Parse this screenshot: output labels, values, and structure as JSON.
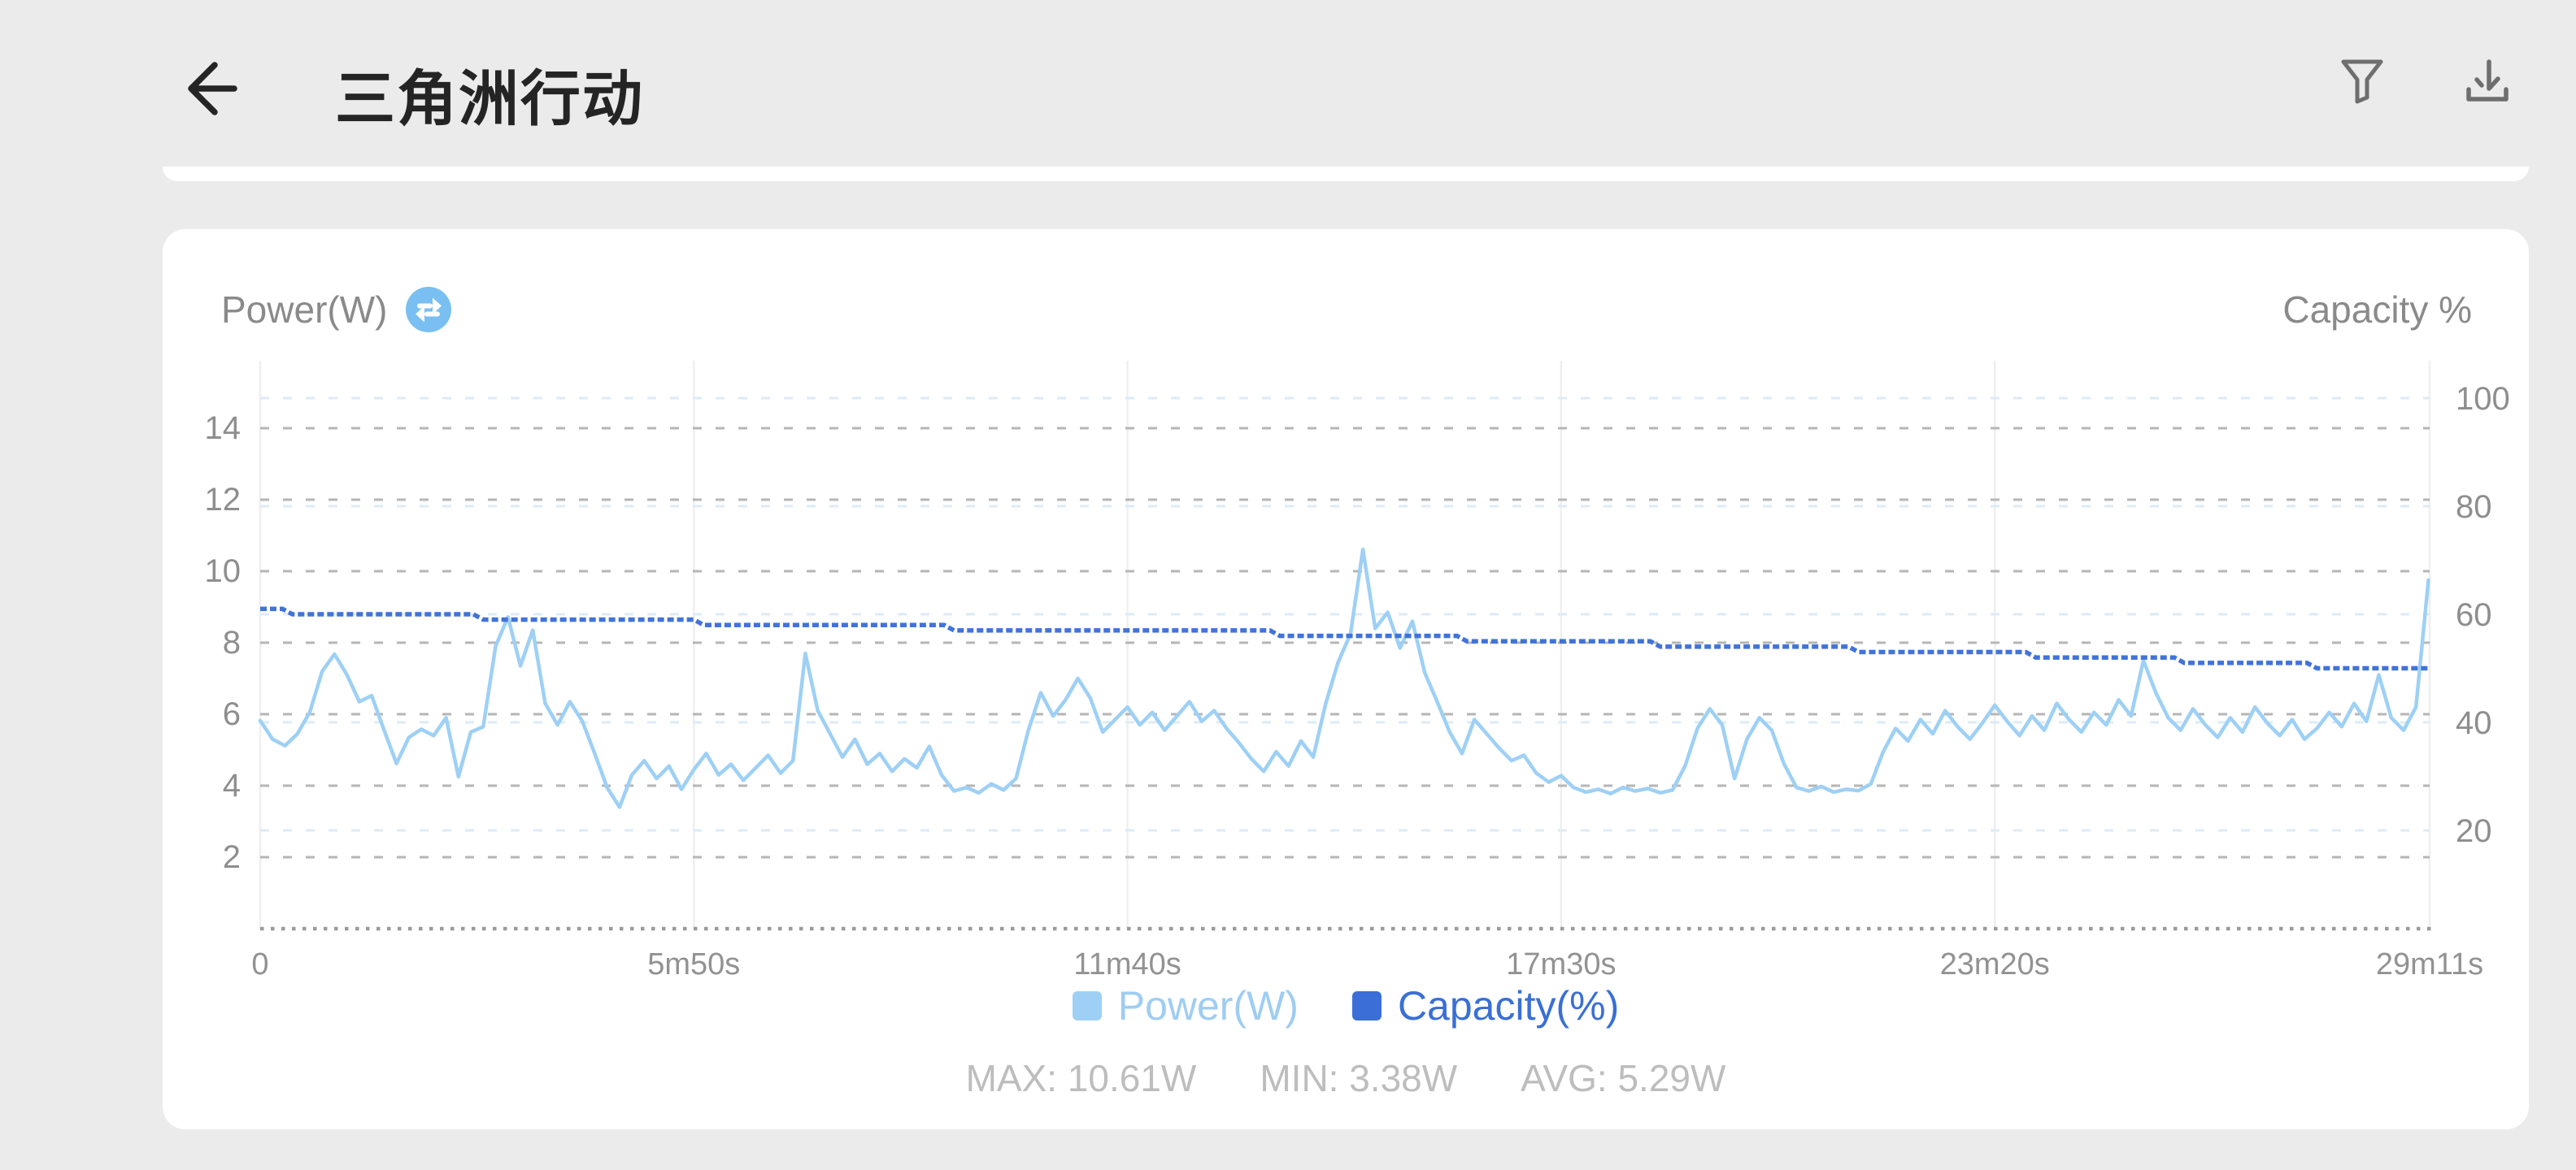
{
  "header": {
    "title": "三角洲行动"
  },
  "card": {
    "metric_label": "Power(W)",
    "right_axis_corner_label": "Capacity %",
    "legend": [
      {
        "label": "Power(W)",
        "color": "#9ed0f5"
      },
      {
        "label": "Capacity(%)",
        "color": "#3b6fd7"
      }
    ],
    "stats": {
      "max": "MAX: 10.61W",
      "min": "MIN: 3.38W",
      "avg": "AVG: 5.29W"
    }
  },
  "chart_data": {
    "type": "line",
    "grid": "dashed-horizontal",
    "legend_position": "bottom-center",
    "x_axis": {
      "range_seconds": [
        0,
        1751
      ],
      "ticks_seconds": [
        0,
        350,
        700,
        1050,
        1400,
        1751
      ],
      "tick_labels": [
        "0",
        "5m50s",
        "11m40s",
        "17m30s",
        "23m20s",
        "29m11s"
      ]
    },
    "left_axis": {
      "name": "Power(W)",
      "range": [
        0,
        16
      ],
      "ticks": [
        2,
        4,
        6,
        8,
        10,
        12,
        14
      ],
      "gridline_color": "#b6b6b6"
    },
    "right_axis": {
      "name": "Capacity %",
      "range": [
        0,
        100
      ],
      "ticks": [
        20,
        40,
        60,
        80,
        100
      ],
      "gridline_color": "#dcebf7"
    },
    "stats": {
      "max_w": 10.61,
      "min_w": 3.38,
      "avg_w": 5.29
    },
    "series": [
      {
        "name": "Power(W)",
        "unit": "W",
        "color": "#9ed0f5",
        "axis": "left",
        "sample_interval_s": 10,
        "values": [
          5.82,
          5.3,
          5.12,
          5.45,
          6.05,
          7.2,
          7.68,
          7.1,
          6.35,
          6.52,
          5.55,
          4.62,
          5.35,
          5.58,
          5.4,
          5.9,
          4.25,
          5.5,
          5.65,
          7.9,
          8.72,
          7.35,
          8.35,
          6.3,
          5.7,
          6.35,
          5.8,
          4.9,
          3.95,
          3.4,
          4.3,
          4.7,
          4.2,
          4.55,
          3.9,
          4.45,
          4.9,
          4.3,
          4.6,
          4.15,
          4.5,
          4.85,
          4.35,
          4.7,
          7.7,
          6.1,
          5.45,
          4.8,
          5.3,
          4.6,
          4.9,
          4.4,
          4.75,
          4.5,
          5.1,
          4.3,
          3.85,
          3.95,
          3.8,
          4.05,
          3.88,
          4.2,
          5.55,
          6.6,
          5.95,
          6.4,
          7.0,
          6.45,
          5.5,
          5.85,
          6.2,
          5.7,
          6.05,
          5.55,
          5.95,
          6.35,
          5.8,
          6.1,
          5.6,
          5.2,
          4.75,
          4.4,
          4.95,
          4.55,
          5.25,
          4.8,
          6.3,
          7.45,
          8.25,
          10.61,
          8.4,
          8.85,
          7.85,
          8.6,
          7.15,
          6.35,
          5.5,
          4.9,
          5.85,
          5.45,
          5.05,
          4.7,
          4.85,
          4.35,
          4.1,
          4.28,
          3.95,
          3.82,
          3.9,
          3.78,
          3.95,
          3.85,
          3.92,
          3.8,
          3.88,
          4.55,
          5.6,
          6.15,
          5.7,
          4.2,
          5.3,
          5.9,
          5.55,
          4.6,
          3.95,
          3.85,
          3.98,
          3.82,
          3.9,
          3.86,
          4.05,
          4.95,
          5.6,
          5.25,
          5.85,
          5.45,
          6.1,
          5.65,
          5.3,
          5.75,
          6.25,
          5.8,
          5.4,
          5.95,
          5.55,
          6.3,
          5.85,
          5.5,
          6.05,
          5.7,
          6.4,
          5.95,
          7.5,
          6.6,
          5.9,
          5.55,
          6.15,
          5.7,
          5.35,
          5.9,
          5.5,
          6.2,
          5.75,
          5.4,
          5.85,
          5.3,
          5.6,
          6.05,
          5.65,
          6.3,
          5.8,
          7.1,
          5.9,
          5.55,
          6.2,
          9.75
        ]
      },
      {
        "name": "Capacity(%)",
        "unit": "%",
        "color": "#4173d9",
        "axis": "right",
        "points": [
          [
            0,
            61
          ],
          [
            18,
            61
          ],
          [
            26,
            60
          ],
          [
            172,
            60
          ],
          [
            180,
            59
          ],
          [
            350,
            59
          ],
          [
            358,
            58
          ],
          [
            552,
            58
          ],
          [
            560,
            57
          ],
          [
            815,
            57
          ],
          [
            823,
            56
          ],
          [
            966,
            56
          ],
          [
            974,
            55
          ],
          [
            1122,
            55
          ],
          [
            1130,
            54
          ],
          [
            1282,
            54
          ],
          [
            1290,
            53
          ],
          [
            1425,
            53
          ],
          [
            1433,
            52
          ],
          [
            1545,
            52
          ],
          [
            1553,
            51
          ],
          [
            1652,
            51
          ],
          [
            1660,
            50
          ],
          [
            1751,
            50
          ]
        ]
      }
    ]
  }
}
